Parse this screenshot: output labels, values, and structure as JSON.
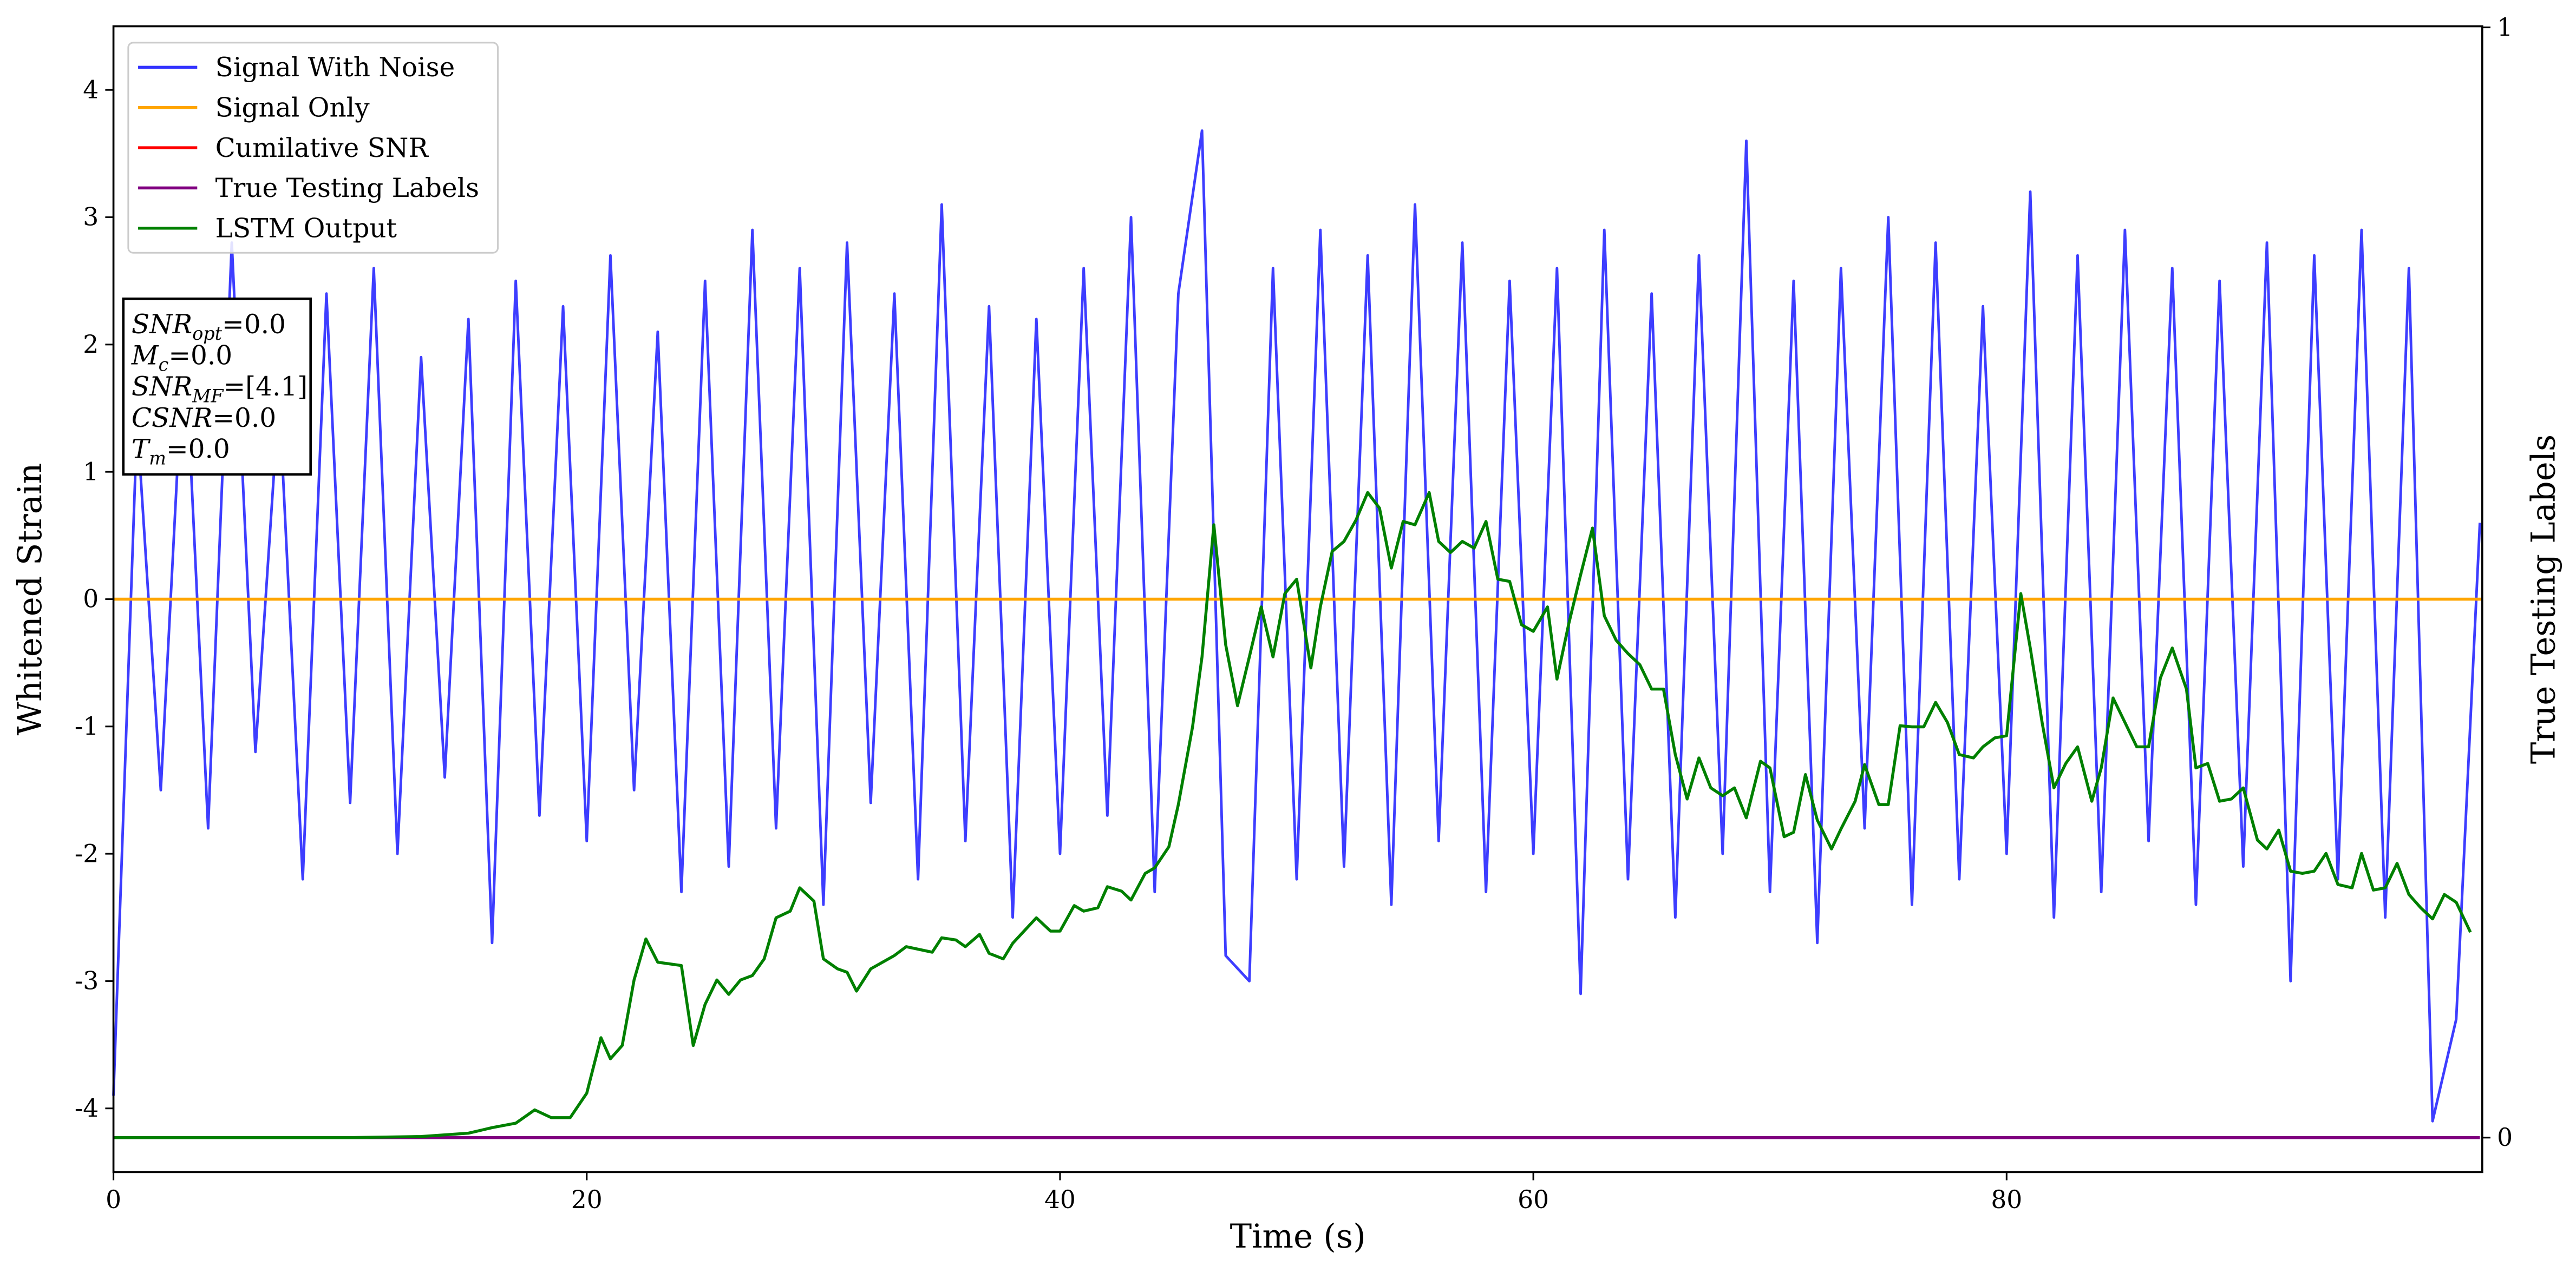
{
  "chart_data": {
    "type": "line",
    "xlabel": "Time (s)",
    "ylabel": "Whitened Strain",
    "y2label": "True Testing Labels",
    "xlim": [
      0,
      100.1
    ],
    "xticks": [
      0,
      20,
      40,
      60,
      80
    ],
    "ylim": [
      -4.5,
      4.5
    ],
    "yticks": [
      -4,
      -3,
      -2,
      -1,
      0,
      1,
      2,
      3,
      4
    ],
    "y2lim": [
      -0.031,
      1.001
    ],
    "y2ticks": [
      0,
      1
    ],
    "legend": "upper left",
    "annotation": [
      {
        "main": "SNR",
        "sub": "opt",
        "rest": "=0.0"
      },
      {
        "main": "M",
        "sub": "c",
        "rest": "=0.0"
      },
      {
        "main": "SNR",
        "sub": "MF",
        "rest": "=[4.1]"
      },
      {
        "main": "CSNR",
        "rest": "=0.0"
      },
      {
        "main": "T",
        "sub": "m",
        "rest": "=0.0"
      }
    ],
    "series": [
      {
        "name": "Signal With Noise",
        "color": "#3333ff",
        "x": [
          0,
          1,
          2,
          3,
          4,
          5,
          6,
          7,
          8,
          9,
          10,
          11,
          12,
          13,
          14,
          15,
          16,
          17,
          18,
          19,
          20,
          21,
          22,
          23,
          24,
          25,
          26,
          27,
          28,
          29,
          30,
          31,
          32,
          33,
          34,
          35,
          36,
          37,
          38,
          39,
          40,
          41,
          42,
          43,
          44,
          45,
          46,
          47,
          48,
          49,
          50,
          51,
          52,
          53,
          54,
          55,
          56,
          57,
          58,
          59,
          60,
          61,
          62,
          63,
          64,
          65,
          66,
          67,
          68,
          69,
          70,
          71,
          72,
          73,
          74,
          75,
          76,
          77,
          78,
          79,
          80,
          81,
          82,
          83,
          84,
          85,
          86,
          87,
          88,
          89,
          90,
          91,
          92,
          93,
          94,
          95,
          96,
          97,
          98,
          99,
          100
        ],
        "values": [
          -3.9,
          1.4,
          -1.5,
          2.1,
          -1.8,
          2.8,
          -1.2,
          1.6,
          -2.2,
          2.4,
          -1.6,
          2.6,
          -2.0,
          1.9,
          -1.4,
          2.2,
          -2.7,
          2.5,
          -1.7,
          2.3,
          -1.9,
          2.7,
          -1.5,
          2.1,
          -2.3,
          2.5,
          -2.1,
          2.9,
          -1.8,
          2.6,
          -2.4,
          2.8,
          -1.6,
          2.4,
          -2.2,
          3.1,
          -1.9,
          2.3,
          -2.5,
          2.2,
          -2.0,
          2.6,
          -1.7,
          3.0,
          -2.3,
          2.4,
          3.68,
          -2.8,
          -3.0,
          2.6,
          -2.2,
          2.9,
          -2.1,
          2.7,
          -2.4,
          3.1,
          -1.9,
          2.8,
          -2.3,
          2.5,
          -2.0,
          2.6,
          -3.1,
          2.9,
          -2.2,
          2.4,
          -2.5,
          2.7,
          -2.0,
          3.6,
          -2.3,
          2.5,
          -2.7,
          2.6,
          -1.8,
          3.0,
          -2.4,
          2.8,
          -2.2,
          2.3,
          -2.0,
          3.2,
          -2.5,
          2.7,
          -2.3,
          2.9,
          -1.9,
          2.6,
          -2.4,
          2.5,
          -2.1,
          2.8,
          -3.0,
          2.7,
          -2.2,
          2.9,
          -2.5,
          2.6,
          -4.1,
          -3.3,
          0.6
        ]
      },
      {
        "name": "Signal Only",
        "color": "#ffa500",
        "x": [
          0,
          100.1
        ],
        "values": [
          0,
          0
        ]
      },
      {
        "name": "Cumilative SNR",
        "color": "#ff0000",
        "axis": "y2",
        "x": [
          0,
          100
        ],
        "values": [
          0,
          0
        ]
      },
      {
        "name": "True Testing Labels",
        "color": "#800080",
        "axis": "y2",
        "x": [
          0,
          100
        ],
        "values": [
          0,
          0
        ]
      },
      {
        "name": "LSTM Output",
        "color": "#008000",
        "axis": "y2",
        "x": [
          0,
          10,
          13,
          15,
          16,
          17,
          17.8,
          18.5,
          19.3,
          20,
          20.6,
          21,
          21.5,
          22,
          22.5,
          23,
          24,
          24.5,
          25,
          25.5,
          26,
          26.5,
          27,
          27.5,
          28,
          28.6,
          29,
          29.6,
          30,
          30.6,
          31,
          31.4,
          32,
          33,
          33.5,
          34.6,
          35,
          35.6,
          36,
          36.6,
          37,
          37.6,
          38,
          39,
          39.6,
          40,
          40.6,
          41,
          41.6,
          42,
          42.6,
          43,
          43.6,
          44,
          44.6,
          45,
          45.6,
          46,
          46.5,
          47,
          47.5,
          48,
          48.5,
          49,
          49.5,
          50,
          50.6,
          51,
          51.5,
          52,
          52.5,
          53,
          53.5,
          54,
          54.5,
          55,
          55.6,
          56,
          56.5,
          57,
          57.5,
          58,
          58.5,
          59,
          59.5,
          60,
          60.6,
          61,
          61.5,
          62,
          62.5,
          63,
          63.5,
          64,
          64.5,
          65,
          65.5,
          66,
          66.5,
          67,
          67.5,
          68,
          68.5,
          69,
          69.6,
          70,
          70.6,
          71,
          71.5,
          72,
          72.6,
          73,
          73.6,
          74,
          74.6,
          75,
          75.5,
          76,
          76.5,
          77,
          77.5,
          78,
          78.6,
          79,
          79.5,
          80,
          80.6,
          81,
          81.5,
          82,
          82.5,
          83,
          83.6,
          84,
          84.5,
          85,
          85.5,
          86,
          86.5,
          87,
          87.6,
          88,
          88.5,
          89,
          89.5,
          90,
          90.6,
          91,
          91.5,
          92,
          92.5,
          93,
          93.5,
          94,
          94.6,
          95,
          95.5,
          96,
          96.5,
          97,
          97.5,
          98,
          98.5,
          99,
          99.6
        ],
        "values": [
          0,
          0,
          0.001,
          0.004,
          0.009,
          0.013,
          0.025,
          0.018,
          0.018,
          0.04,
          0.09,
          0.071,
          0.083,
          0.142,
          0.179,
          0.158,
          0.155,
          0.083,
          0.12,
          0.142,
          0.129,
          0.142,
          0.146,
          0.161,
          0.198,
          0.204,
          0.225,
          0.213,
          0.161,
          0.152,
          0.149,
          0.132,
          0.152,
          0.164,
          0.172,
          0.167,
          0.18,
          0.178,
          0.172,
          0.183,
          0.166,
          0.161,
          0.175,
          0.198,
          0.186,
          0.186,
          0.209,
          0.204,
          0.207,
          0.226,
          0.222,
          0.214,
          0.238,
          0.243,
          0.262,
          0.3,
          0.37,
          0.433,
          0.552,
          0.444,
          0.389,
          0.433,
          0.478,
          0.433,
          0.49,
          0.503,
          0.423,
          0.478,
          0.528,
          0.537,
          0.556,
          0.581,
          0.567,
          0.513,
          0.555,
          0.552,
          0.581,
          0.537,
          0.527,
          0.537,
          0.531,
          0.555,
          0.503,
          0.501,
          0.462,
          0.456,
          0.478,
          0.413,
          0.463,
          0.507,
          0.549,
          0.47,
          0.448,
          0.436,
          0.426,
          0.404,
          0.404,
          0.345,
          0.305,
          0.342,
          0.315,
          0.308,
          0.315,
          0.288,
          0.339,
          0.333,
          0.271,
          0.275,
          0.327,
          0.286,
          0.26,
          0.278,
          0.303,
          0.336,
          0.3,
          0.3,
          0.371,
          0.37,
          0.37,
          0.392,
          0.374,
          0.345,
          0.342,
          0.352,
          0.36,
          0.362,
          0.49,
          0.441,
          0.374,
          0.315,
          0.337,
          0.352,
          0.303,
          0.333,
          0.396,
          0.374,
          0.352,
          0.352,
          0.414,
          0.441,
          0.404,
          0.333,
          0.337,
          0.303,
          0.305,
          0.315,
          0.268,
          0.26,
          0.277,
          0.24,
          0.238,
          0.24,
          0.256,
          0.228,
          0.225,
          0.256,
          0.223,
          0.225,
          0.247,
          0.219,
          0.207,
          0.197,
          0.219,
          0.212,
          0.185
        ]
      }
    ]
  }
}
